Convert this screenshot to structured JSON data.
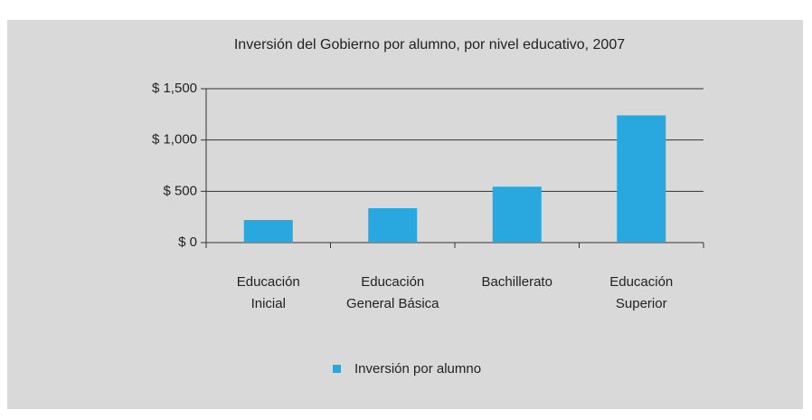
{
  "chart_data": {
    "type": "bar",
    "title": "Inversión del Gobierno por alumno, por nivel educativo, 2007",
    "categories": [
      "Educación Inicial",
      "Educación General Básica",
      "Bachillerato",
      "Educación Superior"
    ],
    "series": [
      {
        "name": "Inversión por alumno",
        "color": "#29a8e0",
        "values": [
          220,
          335,
          545,
          1240
        ]
      }
    ],
    "ylim": [
      0,
      1500
    ],
    "yticks": [
      {
        "value": 0,
        "label": "$ 0"
      },
      {
        "value": 500,
        "label": "$ 500"
      },
      {
        "value": 1000,
        "label": "$ 1,000"
      },
      {
        "value": 1500,
        "label": "$ 1,500"
      }
    ],
    "grid": true,
    "legend": "bottom"
  }
}
